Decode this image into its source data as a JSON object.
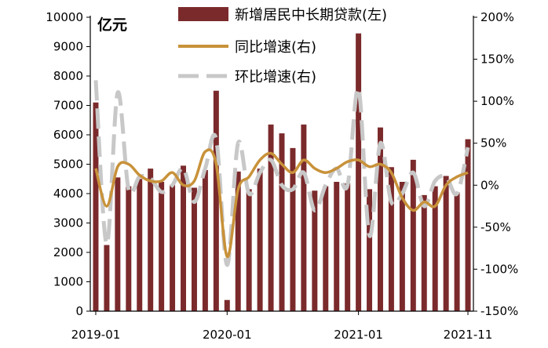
{
  "chart_data": {
    "type": "bar",
    "left_unit": "亿元",
    "y_left": {
      "min": 0,
      "max": 10000,
      "ticks": [
        "0",
        "1000",
        "2000",
        "3000",
        "4000",
        "5000",
        "6000",
        "7000",
        "8000",
        "9000",
        "10000"
      ]
    },
    "y_right": {
      "min": -150,
      "max": 200,
      "ticks": [
        "-150%",
        "-100%",
        "-50%",
        "0%",
        "50%",
        "100%",
        "150%",
        "200%"
      ]
    },
    "x_ticks": [
      {
        "label": "2019-01",
        "index": 0
      },
      {
        "label": "2020-01",
        "index": 12
      },
      {
        "label": "2021-01",
        "index": 24
      },
      {
        "label": "2021-11",
        "index": 34
      }
    ],
    "categories": [
      "2019-01",
      "2019-02",
      "2019-03",
      "2019-04",
      "2019-05",
      "2019-06",
      "2019-07",
      "2019-08",
      "2019-09",
      "2019-10",
      "2019-11",
      "2019-12",
      "2020-01",
      "2020-02",
      "2020-03",
      "2020-04",
      "2020-05",
      "2020-06",
      "2020-07",
      "2020-08",
      "2020-09",
      "2020-10",
      "2020-11",
      "2020-12",
      "2021-01",
      "2021-02",
      "2021-03",
      "2021-04",
      "2021-05",
      "2021-06",
      "2021-07",
      "2021-08",
      "2021-09",
      "2021-10",
      "2021-11"
    ],
    "series": [
      {
        "name": "新增居民中长期贷款(左)",
        "kind": "bar",
        "axis": "left",
        "color": "#7b2a2c",
        "values": [
          7100,
          2250,
          4550,
          4250,
          4500,
          4850,
          4400,
          4300,
          4950,
          4200,
          4800,
          7500,
          380,
          4750,
          4150,
          4850,
          6350,
          6050,
          5550,
          6350,
          4100,
          4250,
          4400,
          4350,
          9450,
          4150,
          6250,
          4900,
          4400,
          5150,
          3950,
          4250,
          4600,
          4050,
          5850
        ]
      },
      {
        "name": "同比增速(右)",
        "kind": "line",
        "axis": "right",
        "color": "#c8923a",
        "values": [
          20,
          -25,
          22,
          25,
          12,
          5,
          5,
          15,
          0,
          5,
          40,
          25,
          -85,
          -5,
          10,
          30,
          38,
          25,
          15,
          30,
          20,
          15,
          20,
          28,
          30,
          22,
          25,
          15,
          -15,
          -30,
          -20,
          -25,
          0,
          10,
          15
        ]
      },
      {
        "name": "环比增速(右)",
        "kind": "line",
        "axis": "right",
        "color": "#c8c8c8",
        "dashed": true,
        "values": [
          125,
          -70,
          110,
          -5,
          10,
          8,
          -8,
          0,
          20,
          -20,
          20,
          55,
          -95,
          50,
          -10,
          15,
          30,
          0,
          -5,
          15,
          -30,
          0,
          20,
          0,
          115,
          -60,
          50,
          -20,
          -10,
          15,
          -25,
          5,
          10,
          -10,
          45
        ]
      }
    ],
    "legend_position": "top-center",
    "grid": false
  }
}
